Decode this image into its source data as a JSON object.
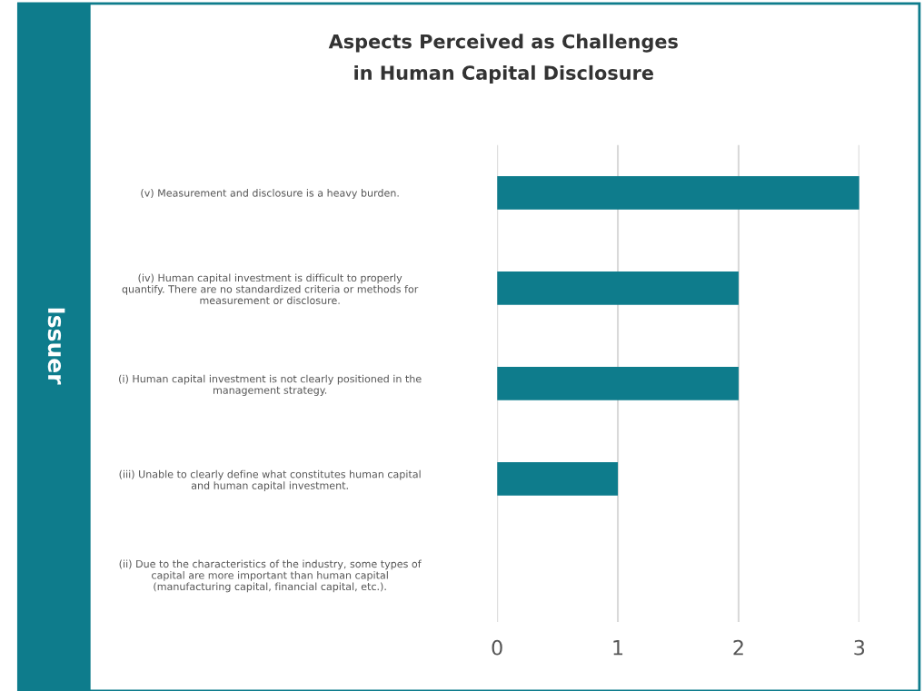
{
  "chart_data": {
    "type": "bar",
    "orientation": "horizontal",
    "title": "Aspects Perceived as Challenges\nin Human Capital Disclosure",
    "ylabel": "Issuer",
    "categories": [
      "(v) Measurement and disclosure is a heavy burden.",
      "(iv) Human capital investment is difficult to properly\nquantify. There are no standardized criteria or methods for\nmeasurement or disclosure.",
      "(i) Human capital investment is not clearly positioned in the\nmanagement strategy.",
      "(iii) Unable to clearly define what constitutes human capital\nand human capital investment.",
      "(ii) Due to the characteristics of the industry, some types of\ncapital are more important than human capital\n(manufacturing capital, financial capital, etc.)."
    ],
    "values": [
      3,
      2,
      2,
      1,
      0
    ],
    "color": "#0e7c8c",
    "xlim": [
      0,
      3
    ],
    "xticks": [
      0,
      1,
      2,
      3
    ],
    "grid": "x",
    "legend": false
  }
}
